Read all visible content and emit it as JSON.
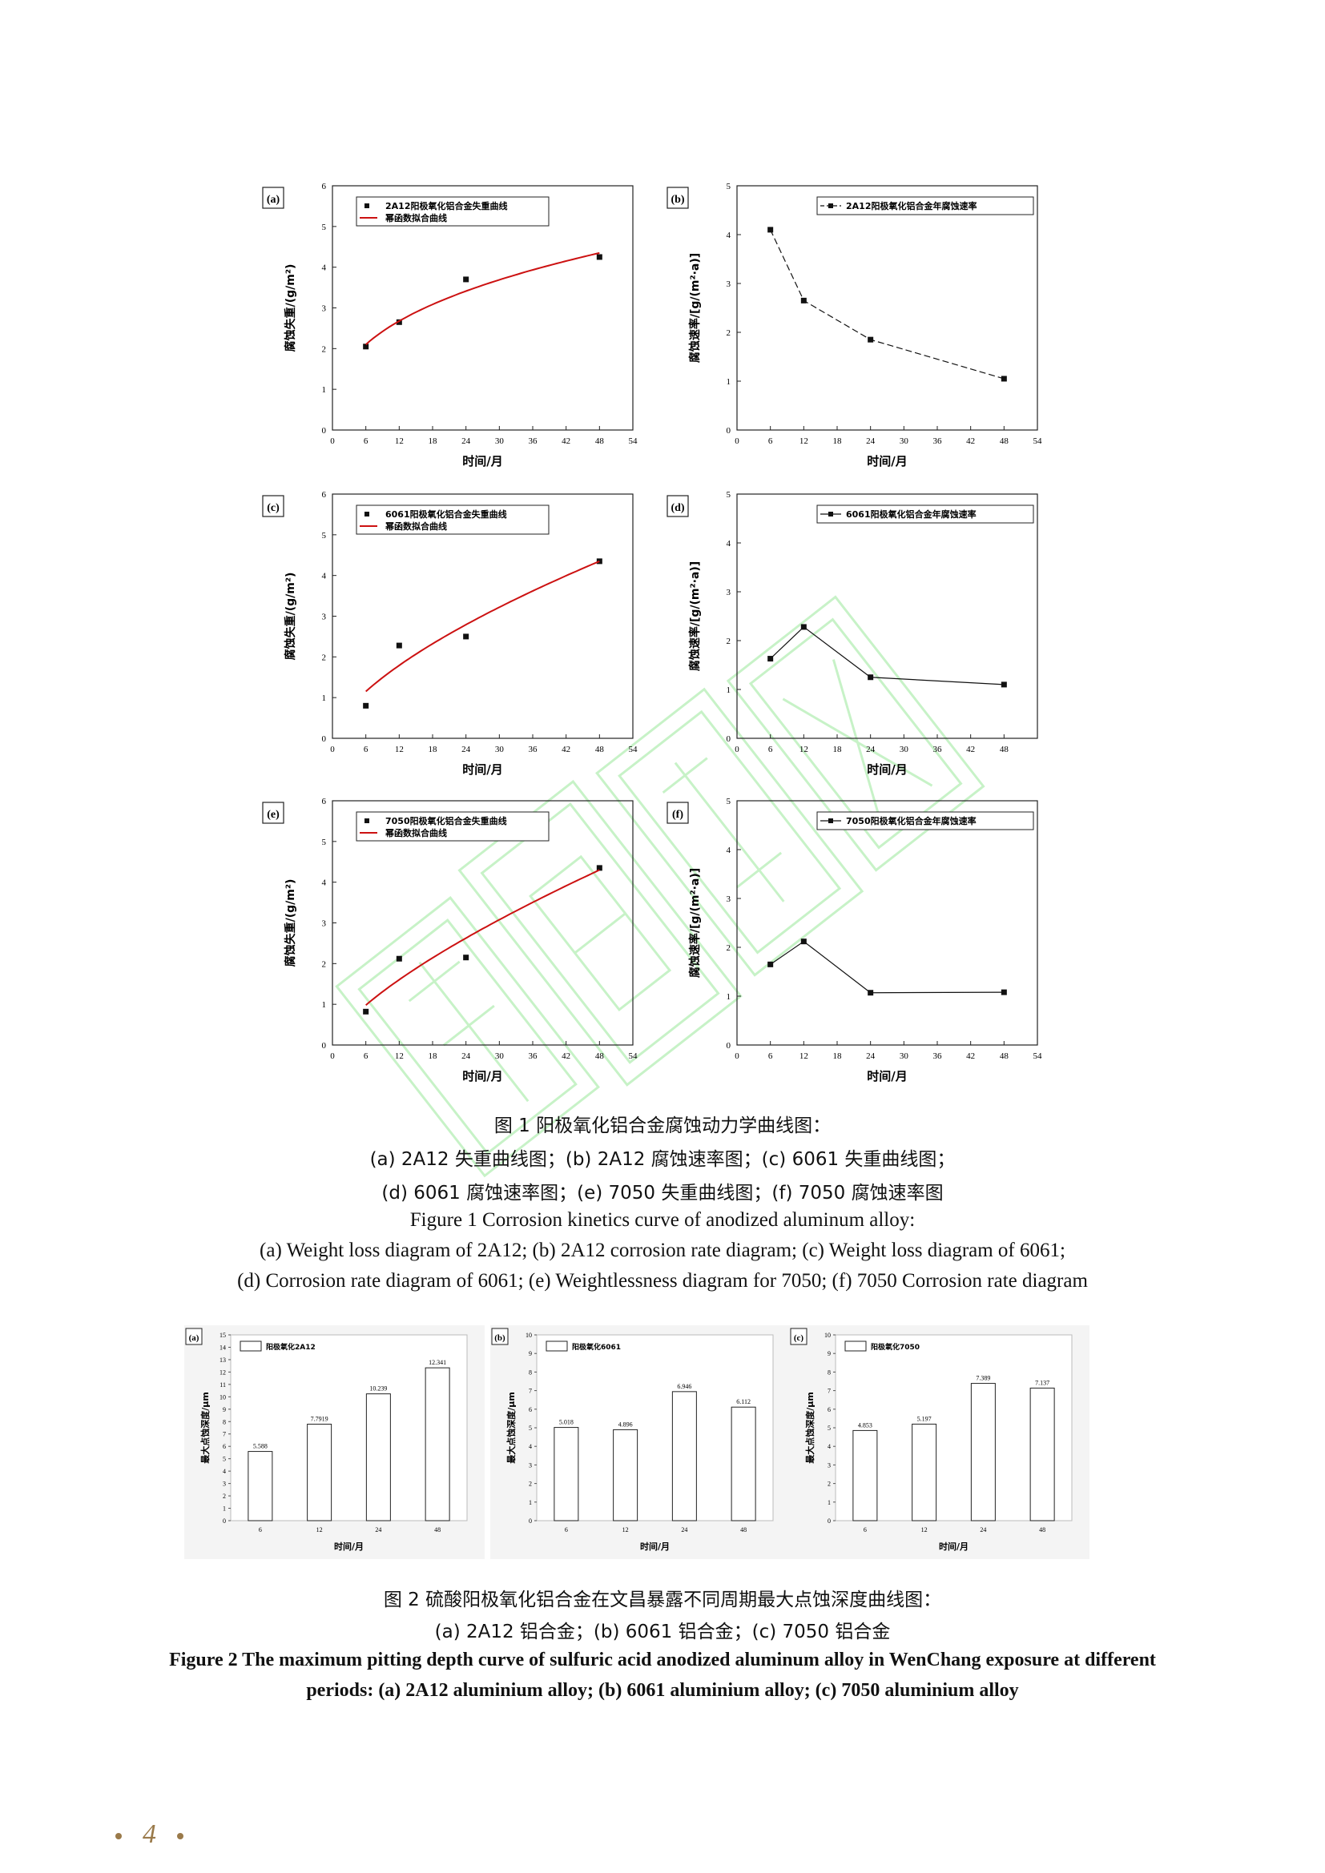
{
  "figure1": {
    "caption_zh": [
      "图 1  阳极氧化铝合金腐蚀动力学曲线图：",
      "(a) 2A12 失重曲线图；(b) 2A12 腐蚀速率图；(c) 6061 失重曲线图；",
      "(d) 6061 腐蚀速率图；(e) 7050 失重曲线图；(f) 7050 腐蚀速率图"
    ],
    "caption_en": [
      "Figure 1    Corrosion kinetics curve of anodized aluminum alloy:",
      "(a) Weight loss diagram of 2A12;    (b) 2A12 corrosion rate diagram;    (c) Weight loss diagram of 6061;",
      "(d) Corrosion rate diagram of 6061;    (e) Weightlessness diagram for 7050;    (f) 7050 Corrosion rate diagram"
    ]
  },
  "figure2": {
    "caption_zh": [
      "图 2  硫酸阳极氧化铝合金在文昌暴露不同周期最大点蚀深度曲线图：",
      "(a) 2A12 铝合金；(b) 6061 铝合金；(c) 7050 铝合金"
    ],
    "caption_en": [
      "Figure 2 The maximum pitting depth curve of sulfuric acid anodized aluminum alloy in WenChang exposure at different",
      "periods:    (a) 2A12 aluminium alloy;    (b) 6061 aluminium alloy;    (c) 7050 aluminium alloy"
    ]
  },
  "footer": {
    "page_number": "4",
    "color": "#9a7a4a"
  },
  "watermark": {
    "color": "#9be89b"
  },
  "chart_data": [
    {
      "id": "a",
      "type": "scatter",
      "panel_label": "(a)",
      "xlabel": "时间/月",
      "ylabel": "腐蚀失重/(g/m²)",
      "xlim": [
        0,
        54
      ],
      "ylim": [
        0,
        6
      ],
      "xticks": [
        0,
        6,
        12,
        18,
        24,
        30,
        36,
        42,
        48,
        54
      ],
      "yticks": [
        0,
        1,
        2,
        3,
        4,
        5,
        6
      ],
      "series": [
        {
          "name": "2A12阳极氧化铝合金失重曲线",
          "style": "points",
          "x": [
            6,
            12,
            24,
            48
          ],
          "y": [
            2.05,
            2.65,
            3.7,
            4.25
          ]
        },
        {
          "name": "幂函数拟合曲线",
          "style": "fit",
          "color": "#cc1111",
          "x": [
            6,
            48
          ],
          "y": [
            2.1,
            4.35
          ]
        }
      ]
    },
    {
      "id": "b",
      "type": "line",
      "panel_label": "(b)",
      "xlabel": "时间/月",
      "ylabel": "腐蚀速率/[g/(m²·a)]",
      "xlim": [
        0,
        54
      ],
      "ylim": [
        0,
        5
      ],
      "xticks": [
        0,
        6,
        12,
        18,
        24,
        30,
        36,
        42,
        48,
        54
      ],
      "yticks": [
        0,
        1,
        2,
        3,
        4,
        5
      ],
      "series": [
        {
          "name": "2A12阳极氧化铝合金年腐蚀速率",
          "style": "dashed",
          "x": [
            6,
            12,
            24,
            48
          ],
          "y": [
            4.1,
            2.65,
            1.85,
            1.05
          ]
        }
      ]
    },
    {
      "id": "c",
      "type": "scatter",
      "panel_label": "(c)",
      "xlabel": "时间/月",
      "ylabel": "腐蚀失重/(g/m²)",
      "xlim": [
        0,
        54
      ],
      "ylim": [
        0,
        6
      ],
      "xticks": [
        0,
        6,
        12,
        18,
        24,
        30,
        36,
        42,
        48,
        54
      ],
      "yticks": [
        0,
        1,
        2,
        3,
        4,
        5,
        6
      ],
      "series": [
        {
          "name": "6061阳极氧化铝合金失重曲线",
          "style": "points",
          "x": [
            6,
            12,
            24,
            48
          ],
          "y": [
            0.8,
            2.28,
            2.5,
            4.35
          ]
        },
        {
          "name": "幂函数拟合曲线",
          "style": "fit",
          "color": "#cc1111",
          "x": [
            6,
            48
          ],
          "y": [
            1.15,
            4.35
          ]
        }
      ]
    },
    {
      "id": "d",
      "type": "line",
      "panel_label": "(d)",
      "xlabel": "时间/月",
      "ylabel": "腐蚀速率/[g/(m²·a)]",
      "xlim": [
        0,
        54
      ],
      "ylim": [
        0,
        5
      ],
      "xticks": [
        0,
        6,
        12,
        18,
        24,
        30,
        36,
        42,
        48
      ],
      "yticks": [
        0,
        1,
        2,
        3,
        4,
        5
      ],
      "series": [
        {
          "name": "6061阳极氧化铝合金年腐蚀速率",
          "style": "solid",
          "x": [
            6,
            12,
            24,
            48
          ],
          "y": [
            1.63,
            2.28,
            1.25,
            1.1
          ]
        }
      ]
    },
    {
      "id": "e",
      "type": "scatter",
      "panel_label": "(e)",
      "xlabel": "时间/月",
      "ylabel": "腐蚀失重/(g/m²)",
      "xlim": [
        0,
        54
      ],
      "ylim": [
        0,
        6
      ],
      "xticks": [
        0,
        6,
        12,
        18,
        24,
        30,
        36,
        42,
        48,
        54
      ],
      "yticks": [
        0,
        1,
        2,
        3,
        4,
        5,
        6
      ],
      "series": [
        {
          "name": "7050阳极氧化铝合金失重曲线",
          "style": "points",
          "x": [
            6,
            12,
            24,
            48
          ],
          "y": [
            0.82,
            2.12,
            2.15,
            4.35
          ]
        },
        {
          "name": "幂函数拟合曲线",
          "style": "fit",
          "color": "#cc1111",
          "x": [
            6,
            48
          ],
          "y": [
            0.98,
            4.3
          ]
        }
      ]
    },
    {
      "id": "f",
      "type": "line",
      "panel_label": "(f)",
      "xlabel": "时间/月",
      "ylabel": "腐蚀速率/[g/(m²·a)]",
      "xlim": [
        0,
        54
      ],
      "ylim": [
        0,
        5
      ],
      "xticks": [
        0,
        6,
        12,
        18,
        24,
        30,
        36,
        42,
        48,
        54
      ],
      "yticks": [
        0,
        1,
        2,
        3,
        4,
        5
      ],
      "series": [
        {
          "name": "7050阳极氧化铝合金年腐蚀速率",
          "style": "solid",
          "x": [
            6,
            12,
            24,
            48
          ],
          "y": [
            1.65,
            2.12,
            1.07,
            1.08
          ]
        }
      ]
    },
    {
      "id": "g",
      "type": "bar",
      "panel_label": "(a)",
      "xlabel": "时间/月",
      "ylabel": "最大点蚀深度/μm",
      "categories": [
        "6",
        "12",
        "24",
        "48"
      ],
      "ylim": [
        0,
        15
      ],
      "yticks": [
        0,
        1,
        2,
        3,
        4,
        5,
        6,
        7,
        8,
        9,
        10,
        11,
        12,
        13,
        14,
        15
      ],
      "series": [
        {
          "name": "阳极氧化2A12",
          "values": [
            5.588,
            7.7919,
            10.239,
            12.341
          ],
          "labels": [
            "5.588",
            "7.7919",
            "10.239",
            "12.341"
          ]
        }
      ]
    },
    {
      "id": "h",
      "type": "bar",
      "panel_label": "(b)",
      "xlabel": "时间/月",
      "ylabel": "最大点蚀深度/μm",
      "categories": [
        "6",
        "12",
        "24",
        "48"
      ],
      "ylim": [
        0,
        10
      ],
      "yticks": [
        0,
        1,
        2,
        3,
        4,
        5,
        6,
        7,
        8,
        9,
        10
      ],
      "series": [
        {
          "name": "阳极氧化6061",
          "values": [
            5.018,
            4.896,
            6.946,
            6.112
          ],
          "labels": [
            "5.018",
            "4.896",
            "6.946",
            "6.112"
          ]
        }
      ]
    },
    {
      "id": "i",
      "type": "bar",
      "panel_label": "(c)",
      "xlabel": "时间/月",
      "ylabel": "最大点蚀深度/μm",
      "categories": [
        "6",
        "12",
        "24",
        "48"
      ],
      "ylim": [
        0,
        10
      ],
      "yticks": [
        0,
        1,
        2,
        3,
        4,
        5,
        6,
        7,
        8,
        9,
        10
      ],
      "series": [
        {
          "name": "阳极氧化7050",
          "values": [
            4.853,
            5.197,
            7.389,
            7.137
          ],
          "labels": [
            "4.853",
            "5.197",
            "7.389",
            "7.137"
          ]
        }
      ]
    }
  ]
}
